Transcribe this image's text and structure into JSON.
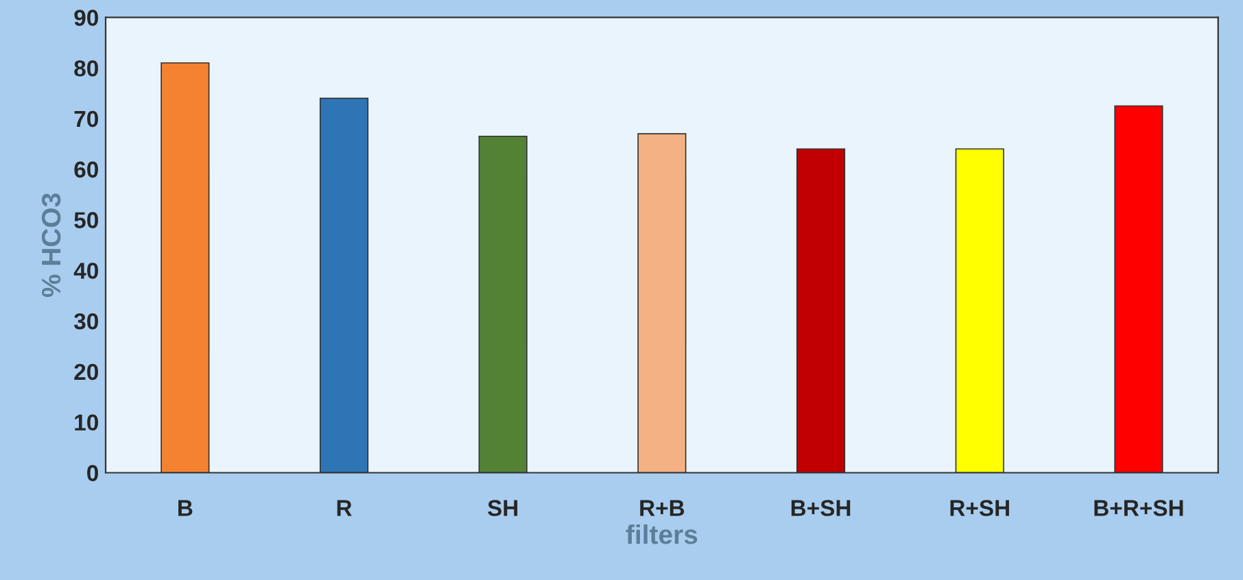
{
  "chart_data": {
    "type": "bar",
    "xlabel": "filters",
    "ylabel": "% HCO3",
    "categories": [
      "B",
      "R",
      "SH",
      "R+B",
      "B+SH",
      "R+SH",
      "B+R+SH"
    ],
    "values": [
      81,
      74,
      66.5,
      67,
      64,
      64,
      72.5
    ],
    "colors": [
      "#f58231",
      "#2e75b6",
      "#548235",
      "#f4b183",
      "#c00000",
      "#ffff00",
      "#ff0000"
    ],
    "ylim": [
      0,
      90
    ],
    "yticks": [
      0,
      10,
      20,
      30,
      40,
      50,
      60,
      70,
      80,
      90
    ],
    "grid": false
  }
}
